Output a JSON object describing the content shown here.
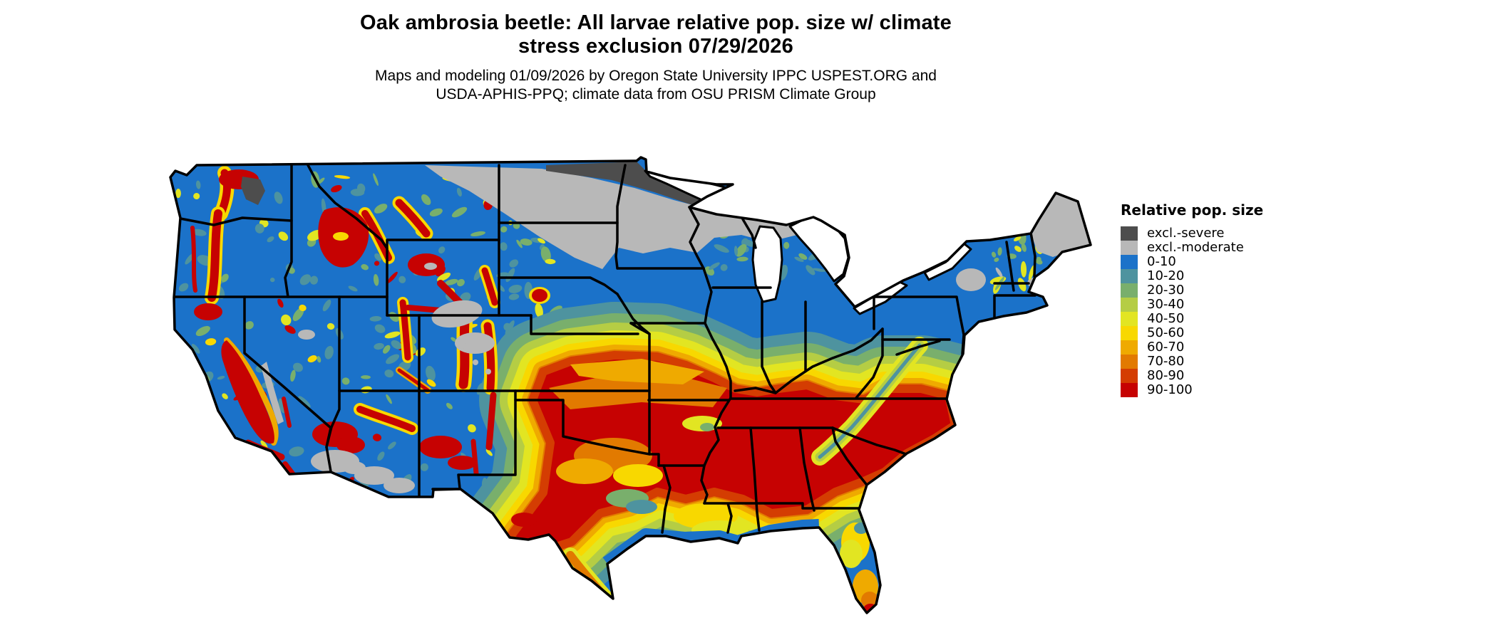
{
  "header": {
    "title_line1": "Oak ambrosia beetle: All larvae relative pop. size w/ climate",
    "title_line2": "stress exclusion 07/29/2026",
    "subtitle_line1": "Maps and modeling 01/09/2026 by Oregon State University IPPC USPEST.ORG and",
    "subtitle_line2": "USDA-APHIS-PPQ; climate data from OSU PRISM Climate Group"
  },
  "legend": {
    "title": "Relative pop. size",
    "items": [
      {
        "key": "exclSevere",
        "label": "excl.-severe",
        "color": "#4d4d4d"
      },
      {
        "key": "exclModerate",
        "label": "excl.-moderate",
        "color": "#b8b8b8"
      },
      {
        "key": "r0",
        "label": "0-10",
        "color": "#1b72c9"
      },
      {
        "key": "r10",
        "label": "10-20",
        "color": "#4e939f"
      },
      {
        "key": "r20",
        "label": "20-30",
        "color": "#79af6c"
      },
      {
        "key": "r30",
        "label": "30-40",
        "color": "#b5cd44"
      },
      {
        "key": "r40",
        "label": "40-50",
        "color": "#e2e522"
      },
      {
        "key": "r50",
        "label": "50-60",
        "color": "#f8d800"
      },
      {
        "key": "r60",
        "label": "60-70",
        "color": "#efaa00"
      },
      {
        "key": "r70",
        "label": "70-80",
        "color": "#e27a00"
      },
      {
        "key": "r80",
        "label": "80-90",
        "color": "#d43d02"
      },
      {
        "key": "r90",
        "label": "90-100",
        "color": "#c60202"
      }
    ]
  },
  "map": {
    "type": "choropleth-raster",
    "area": "Continental United States with black state boundaries",
    "notable_patterns": [
      {
        "region": "Northern Minnesota and far-northern North Dakota",
        "value": "excl.-severe"
      },
      {
        "region": "North Dakota, northern Minnesota/Wisconsin/Michigan UP, northern Maine, Adirondacks, Wyoming basins, Sierra crest, southern Arizona deserts",
        "value": "excl.-moderate"
      },
      {
        "region": "Pacific Northwest lowlands, northern plains, Great Lakes states, Northeast, Gulf Coast fringe, Florida peninsula",
        "value": "0-10"
      },
      {
        "region": "Kansas, Oklahoma, north Texas, Missouri, Arkansas, Tennessee, Kentucky, northern Mississippi/Alabama/Georgia, Carolinas, Virginia, Delmarva",
        "value": "90-100"
      },
      {
        "region": "Cascades, California Central Valley, northern Rockies, Wasatch, Colorado Rockies, Black Hills, New Mexico and Arizona highlands",
        "value": "90-100 mountain bands with 40-80 fringes"
      },
      {
        "region": "Concentric 10-80 transition bands ringing the southern core",
        "value": "10-80"
      },
      {
        "region": "South Florida tip, Florida Keys and lower Rio Grande valley",
        "value": "60-100"
      }
    ]
  }
}
